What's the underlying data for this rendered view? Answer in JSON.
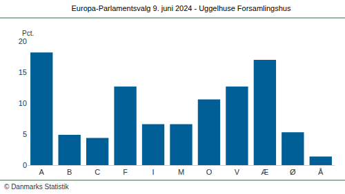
{
  "chart_data": {
    "type": "bar",
    "title": "Europa-Parlamentsvalg 9. juni 2024 - Uggelhuse Forsamlingshus",
    "ylabel": "Pct.",
    "source": "© Danmarks Statistik",
    "categories": [
      "A",
      "B",
      "C",
      "F",
      "I",
      "M",
      "O",
      "V",
      "Æ",
      "Ø",
      "Å"
    ],
    "values": [
      18.2,
      4.9,
      4.4,
      12.7,
      6.6,
      6.6,
      10.6,
      12.7,
      17.0,
      5.3,
      1.4
    ],
    "color": "#005f96",
    "ylim": [
      0,
      20
    ],
    "yticks": [
      0,
      5,
      10,
      15,
      20
    ],
    "grid": false
  }
}
